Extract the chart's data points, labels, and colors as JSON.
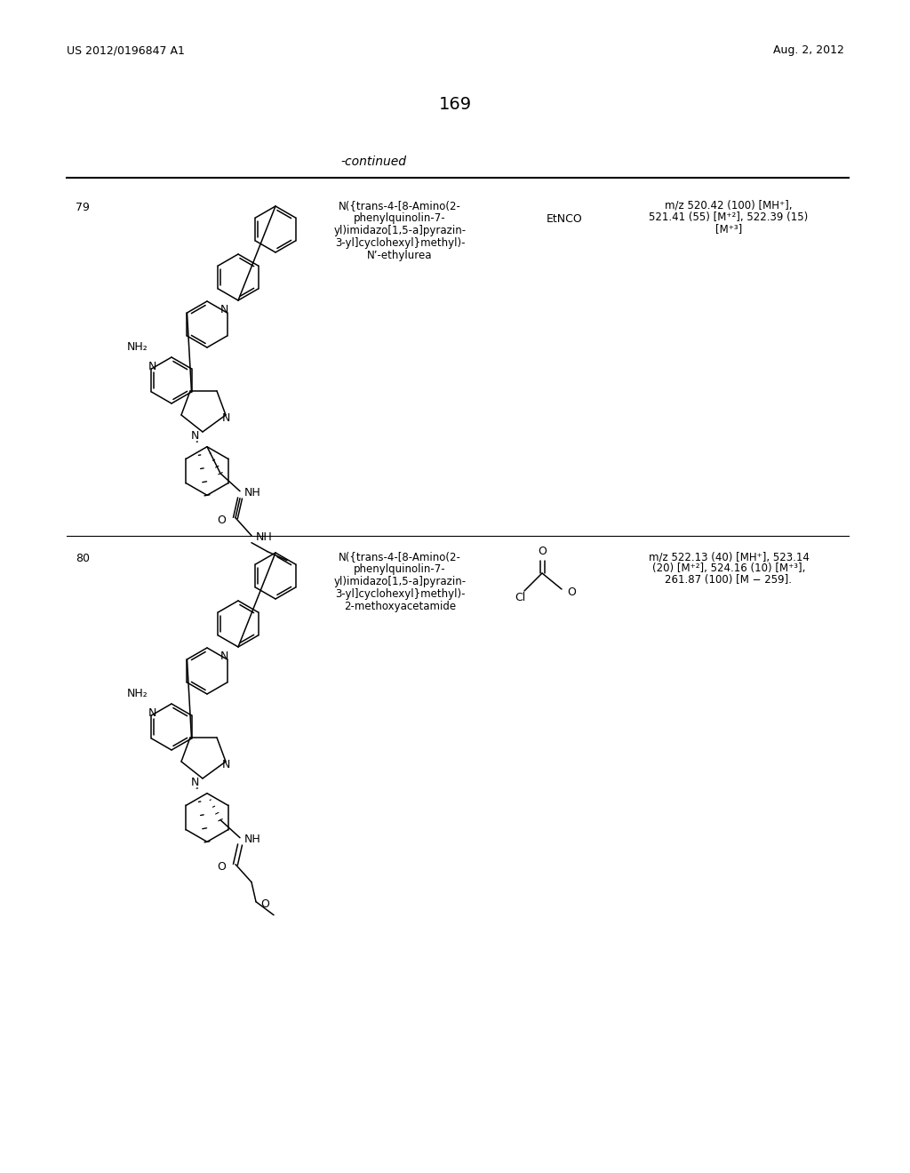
{
  "bg_color": "#ffffff",
  "header_left": "US 2012/0196847 A1",
  "header_right": "Aug. 2, 2012",
  "page_number": "169",
  "continued_text": "-continued",
  "row79": {
    "num": "79",
    "name_lines": [
      "N({trans-4-[8-Amino(2-",
      "phenylquinolin-7-",
      "yl)imidazo[1,5-a]pyrazin-",
      "3-yl]cyclohexyl}methyl)-",
      "N’-ethylurea"
    ],
    "reagent": "EtNCO",
    "ms_lines": [
      "m/z 520.42 (100) [MH⁺],",
      "521.41 (55) [M⁺²], 522.39 (15)",
      "[M⁺³]"
    ]
  },
  "row80": {
    "num": "80",
    "name_lines": [
      "N({trans-4-[8-Amino(2-",
      "phenylquinolin-7-",
      "yl)imidazo[1,5-a]pyrazin-",
      "3-yl]cyclohexyl}methyl)-",
      "2-methoxyacetamide"
    ],
    "reagent_lines": [
      "O",
      "Cl"
    ],
    "ms_lines": [
      "m/z 522.13 (40) [MH⁺], 523.14",
      "(20) [M⁺²], 524.16 (10) [M⁺³],",
      "261.87 (100) [M − 259]."
    ]
  }
}
